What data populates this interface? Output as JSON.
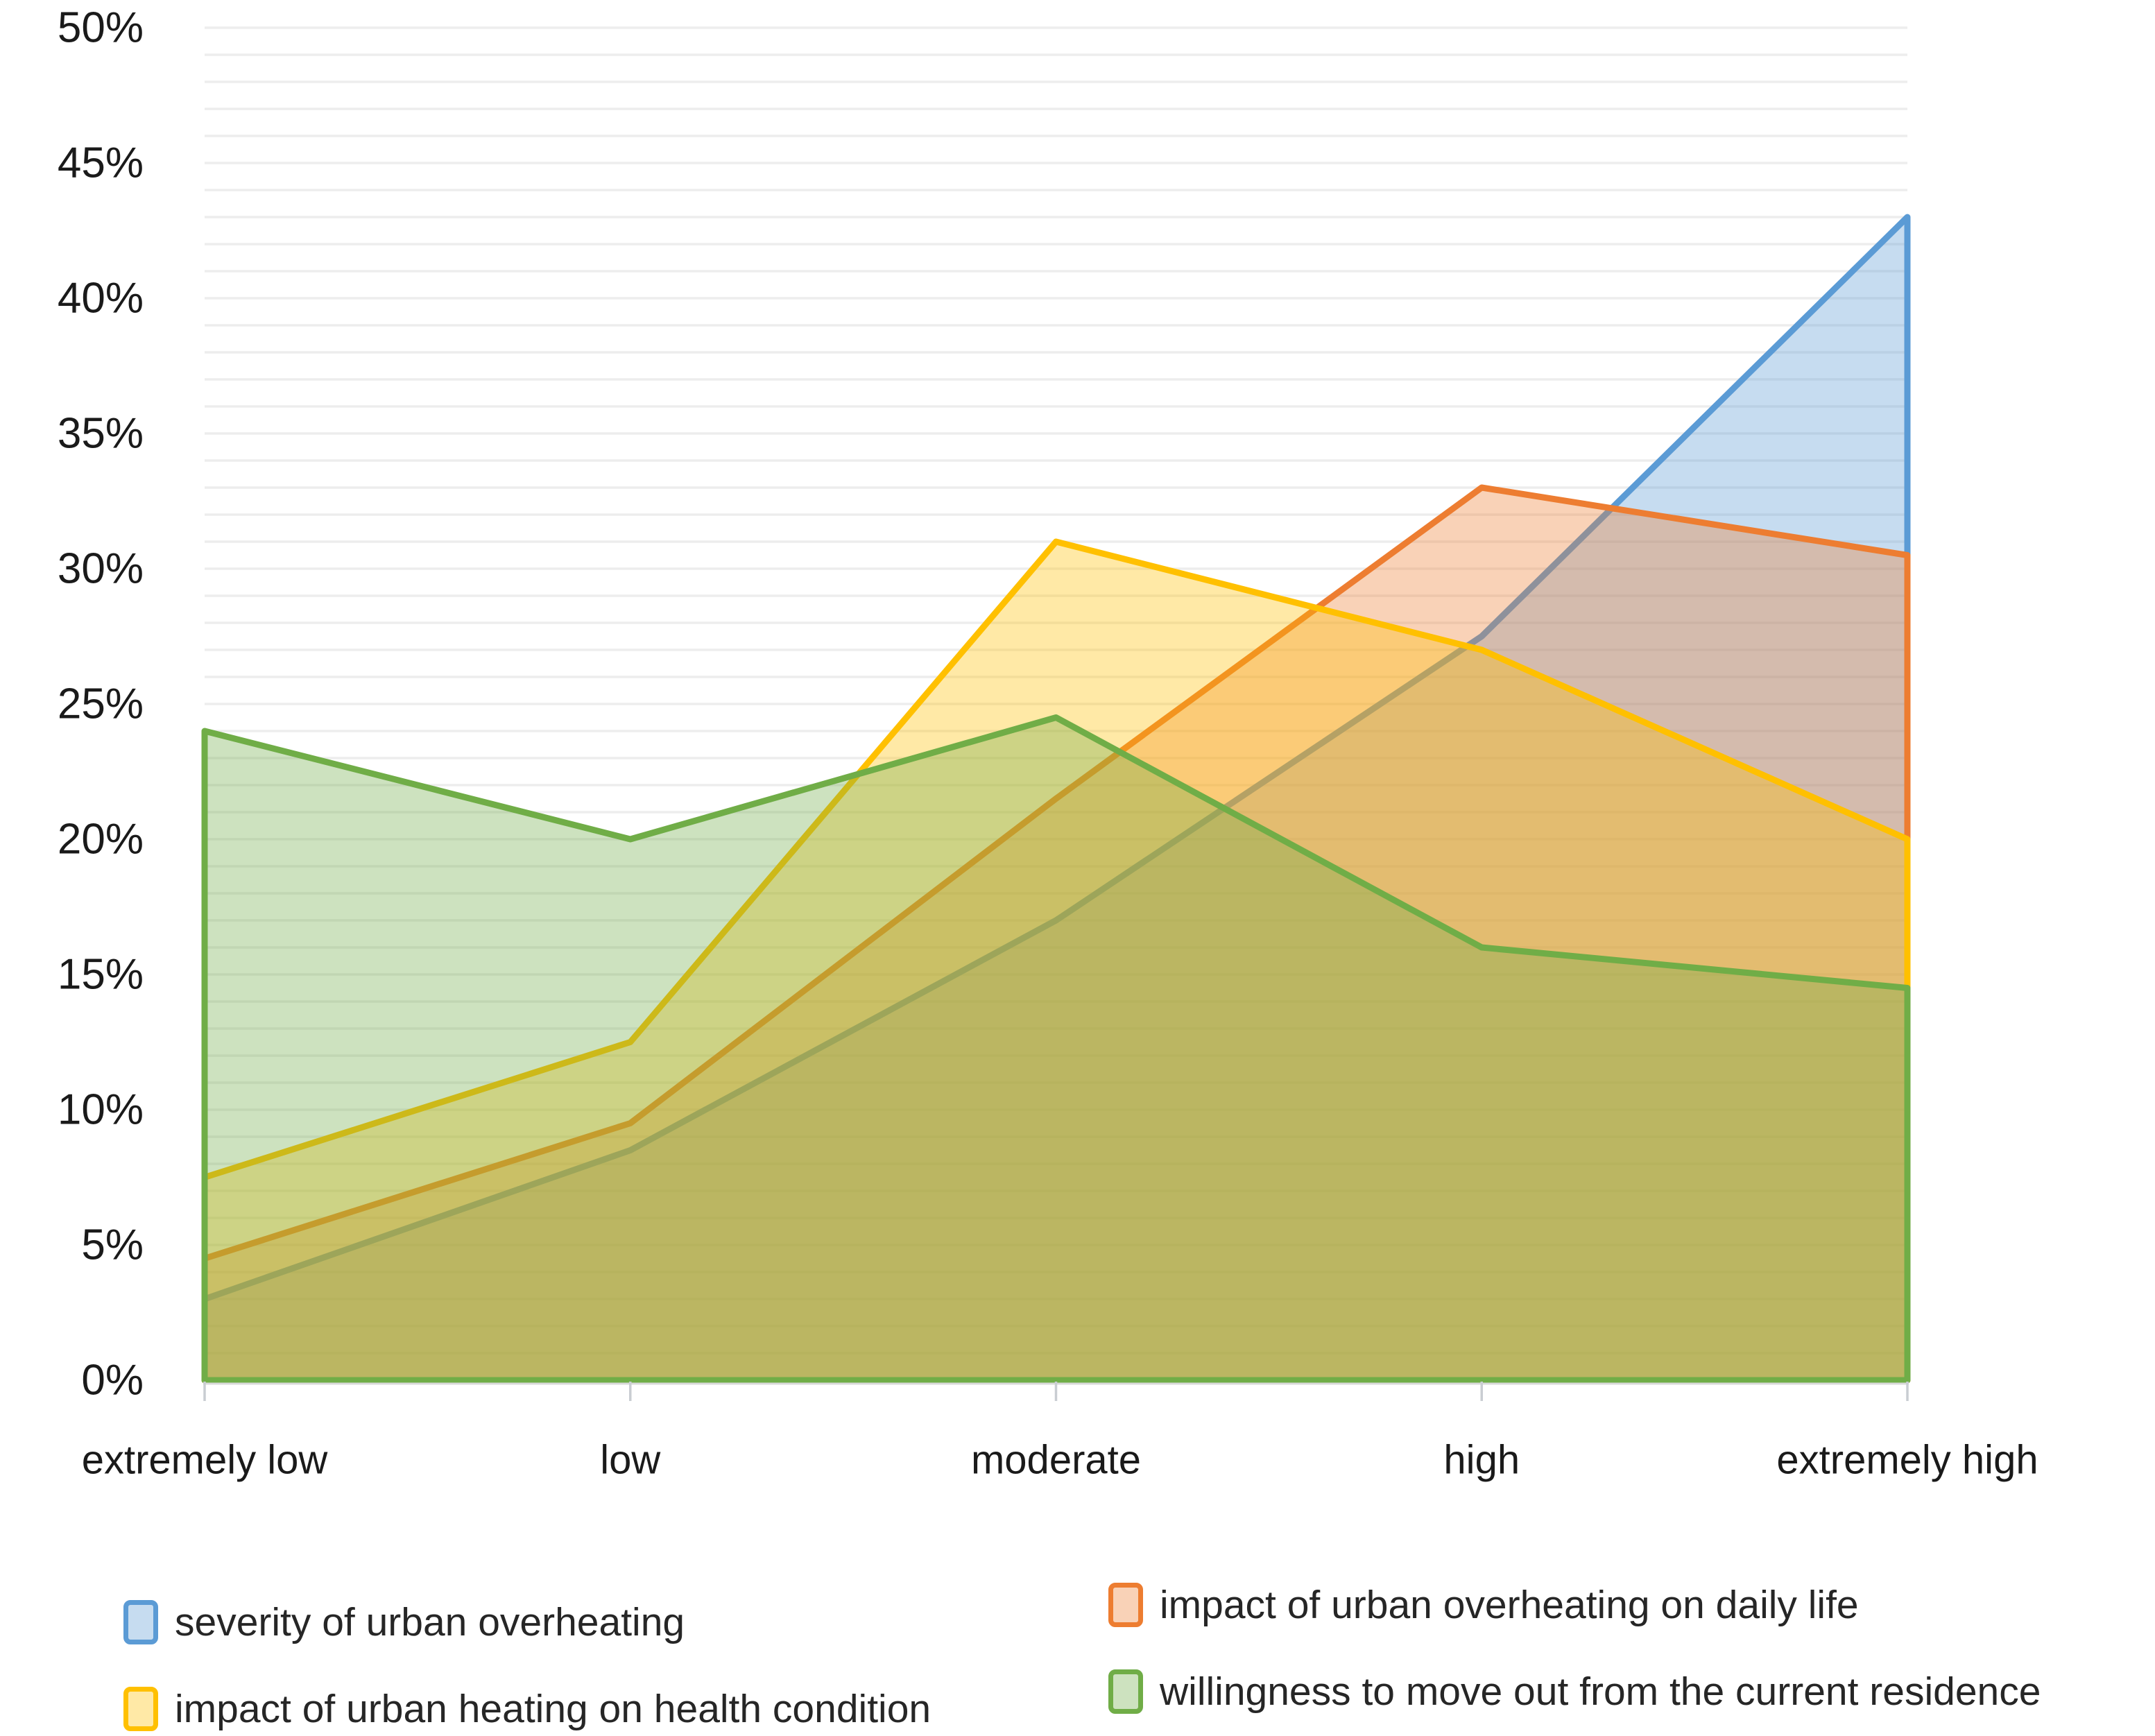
{
  "chart_data": {
    "type": "area",
    "title": "",
    "xlabel": "",
    "ylabel": "",
    "categories": [
      "extremely low",
      "low",
      "moderate",
      "high",
      "extremely high"
    ],
    "series": [
      {
        "name": "severity of urban overheating",
        "color": "#5B9BD5",
        "swatch_fill": "#C6DCF0",
        "values": [
          3,
          8.5,
          17,
          27.5,
          43
        ]
      },
      {
        "name": "impact of urban overheating on daily life",
        "color": "#ED7D31",
        "swatch_fill": "#F9D2B7",
        "values": [
          4.5,
          9.5,
          21.5,
          33,
          30.5
        ]
      },
      {
        "name": "impact of urban heating on health condition",
        "color": "#FFC000",
        "swatch_fill": "#FFE9A6",
        "values": [
          7.5,
          12.5,
          31,
          27,
          20
        ]
      },
      {
        "name": "willingness to move out from the current residence",
        "color": "#70AD47",
        "swatch_fill": "#CDE2BF",
        "values": [
          24,
          20,
          24.5,
          16,
          14.5
        ]
      }
    ],
    "ylim": [
      0,
      50
    ],
    "y_tick_labels": [
      "0%",
      "5%",
      "10%",
      "15%",
      "20%",
      "25%",
      "30%",
      "35%",
      "40%",
      "45%",
      "50%"
    ],
    "y_major_step": 5,
    "y_minor_step": 1,
    "grid": "horizontal-minor",
    "fill_opacity": 0.35,
    "legend_position": "bottom-two-columns",
    "gridline_color": "#EDEDED",
    "axis_line_color": "#D9D9D9",
    "tick_color": "#C9CDD2",
    "axis_text_color": "#1A1A1A"
  }
}
